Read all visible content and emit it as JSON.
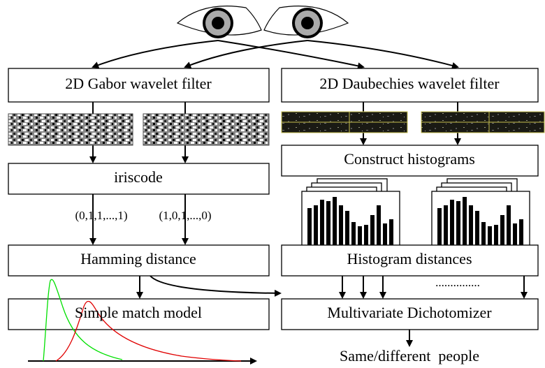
{
  "boxes": {
    "gabor": "2D Gabor wavelet filter",
    "daubechies": "2D Daubechies wavelet filter",
    "iriscode": "iriscode",
    "construct": "Construct histograms",
    "hamming": "Hamming distance",
    "histdist": "Histogram distances",
    "simple": "Simple match model",
    "dichotomizer": "Multivariate Dichotomizer"
  },
  "codes": [
    "(0,1,1,...,1)",
    "(1,0,1,...,0)"
  ],
  "dots": "...............",
  "output": "Same/different  people"
}
